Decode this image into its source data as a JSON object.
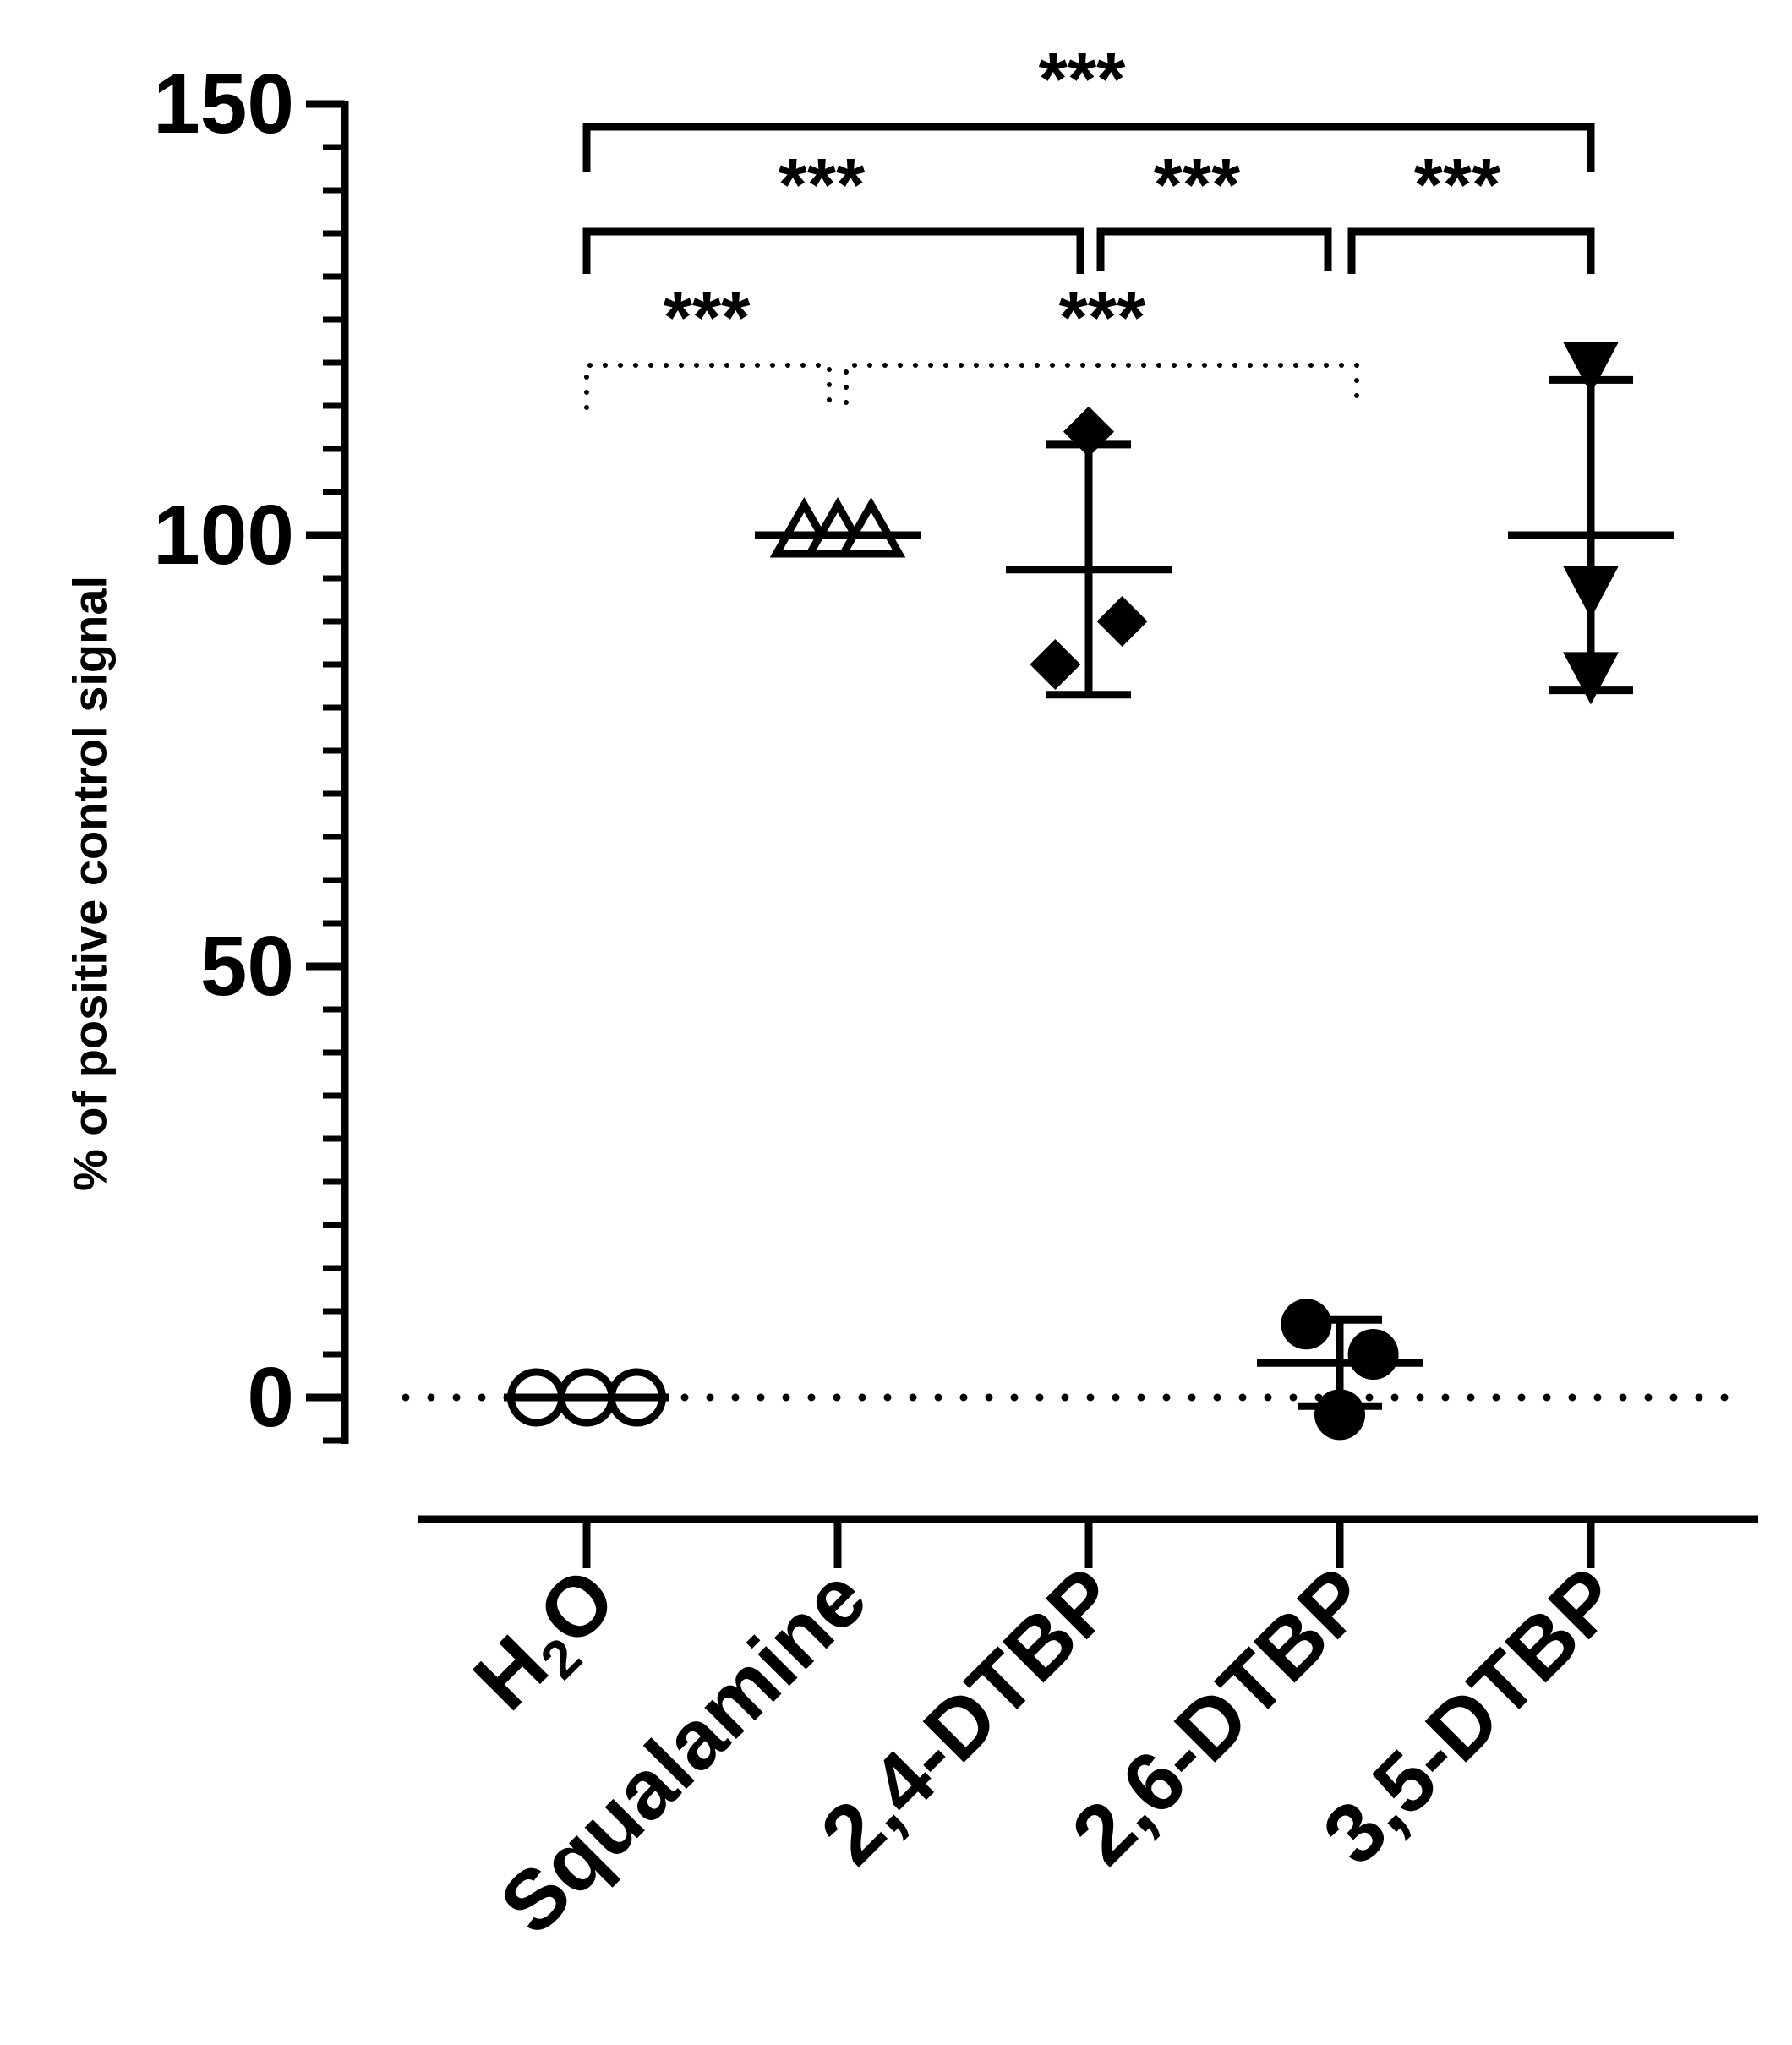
{
  "chart_data": {
    "type": "scatter",
    "ylabel": "% of positive control signal",
    "ylim": [
      -5,
      150
    ],
    "yticks": [
      0,
      50,
      100,
      150
    ],
    "ytick_labels": [
      "0",
      "50",
      "100",
      "150"
    ],
    "categories": [
      {
        "main": "H",
        "sub": "2",
        "tail": "O"
      },
      {
        "main": "Squalamine",
        "sub": "",
        "tail": ""
      },
      {
        "main": "2,4-DTBP",
        "sub": "",
        "tail": ""
      },
      {
        "main": "2,6-DTBP",
        "sub": "",
        "tail": ""
      },
      {
        "main": "3,5-DTBP",
        "sub": "",
        "tail": ""
      }
    ],
    "groups": [
      {
        "marker": "circle-open",
        "points": [
          [
            -0.33,
            0
          ],
          [
            0,
            0
          ],
          [
            0.33,
            0
          ]
        ],
        "mean": 0,
        "sd": 0
      },
      {
        "marker": "triangle-up-open",
        "points": [
          [
            -0.22,
            100
          ],
          [
            0,
            100
          ],
          [
            0.22,
            100
          ]
        ],
        "mean": 100,
        "sd": 0
      },
      {
        "marker": "diamond",
        "points": [
          [
            0,
            112
          ],
          [
            -0.22,
            85
          ],
          [
            0.22,
            90
          ]
        ],
        "mean": 96,
        "sd": 14.5
      },
      {
        "marker": "circle",
        "points": [
          [
            -0.22,
            8.5
          ],
          [
            0.22,
            5
          ],
          [
            0,
            -2
          ]
        ],
        "mean": 4,
        "sd": 5
      },
      {
        "marker": "triangle-down",
        "points": [
          [
            0,
            120
          ],
          [
            0,
            94
          ],
          [
            0,
            84
          ]
        ],
        "mean": 100,
        "sd": 18
      }
    ],
    "reference_line_y": 0,
    "significance": [
      {
        "from": 0,
        "to": 4,
        "label": "***",
        "style": "solid"
      },
      {
        "from": 0,
        "to": 2,
        "label": "***",
        "style": "solid"
      },
      {
        "from": 2,
        "to": 3,
        "label": "***",
        "style": "solid"
      },
      {
        "from": 3,
        "to": 4,
        "label": "***",
        "style": "solid"
      },
      {
        "from": 0,
        "to": 1,
        "label": "***",
        "style": "dotted"
      },
      {
        "from": 1,
        "to": 3,
        "label": "***",
        "style": "dotted"
      }
    ]
  }
}
